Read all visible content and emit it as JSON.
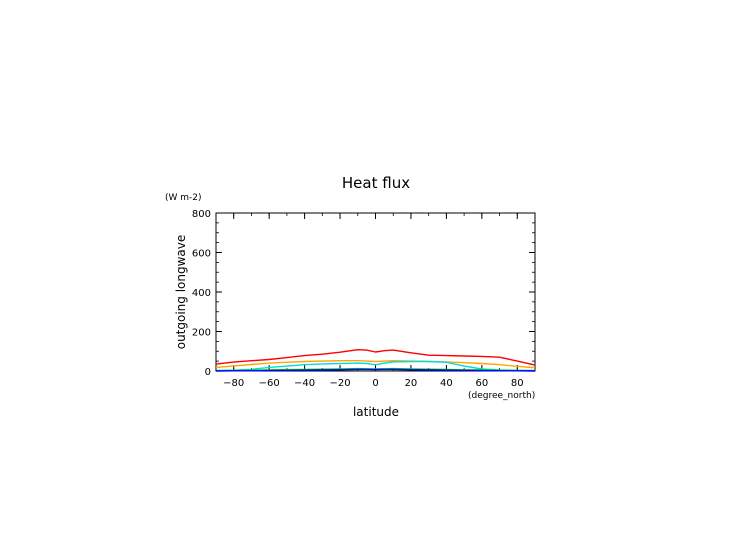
{
  "chart_data": {
    "type": "line",
    "title": "Heat flux",
    "xlabel": "latitude",
    "ylabel": "outgoing longwave",
    "xunits": "(degree_north)",
    "yunits": "(W m-2)",
    "xlim": [
      -90,
      90
    ],
    "ylim": [
      0,
      800
    ],
    "xticks": [
      -80,
      -60,
      -40,
      -20,
      0,
      20,
      40,
      60,
      80
    ],
    "xtick_labels": [
      "−80",
      "−60",
      "−40",
      "−20",
      "0",
      "20",
      "40",
      "60",
      "80"
    ],
    "yticks": [
      0,
      200,
      400,
      600,
      800
    ],
    "ytick_labels": [
      "0",
      "200",
      "400",
      "600",
      "800"
    ],
    "grid": false,
    "x": [
      -90,
      -80,
      -70,
      -60,
      -50,
      -40,
      -30,
      -20,
      -10,
      -5,
      0,
      5,
      10,
      20,
      30,
      40,
      50,
      60,
      70,
      80,
      90
    ],
    "series": [
      {
        "color": "#ff0000",
        "values": [
          35,
          45,
          52,
          58,
          68,
          78,
          85,
          95,
          108,
          106,
          96,
          103,
          106,
          92,
          80,
          78,
          76,
          74,
          70,
          50,
          30
        ]
      },
      {
        "color": "#ffa500",
        "values": [
          18,
          26,
          33,
          40,
          44,
          48,
          50,
          52,
          52,
          50,
          48,
          50,
          52,
          50,
          48,
          46,
          42,
          38,
          32,
          24,
          16
        ]
      },
      {
        "color": "#00dddd",
        "values": [
          2,
          4,
          8,
          18,
          25,
          32,
          36,
          38,
          40,
          38,
          32,
          40,
          46,
          48,
          48,
          44,
          25,
          10,
          5,
          3,
          2
        ]
      },
      {
        "color": "#00cc00",
        "values": [
          2,
          3,
          4,
          5,
          7,
          8,
          9,
          10,
          12,
          11,
          10,
          11,
          12,
          10,
          9,
          8,
          6,
          5,
          4,
          3,
          2
        ]
      },
      {
        "color": "#0000ff",
        "values": [
          0,
          1,
          1,
          2,
          3,
          4,
          5,
          6,
          8,
          8,
          7,
          8,
          8,
          6,
          5,
          4,
          3,
          2,
          1,
          1,
          0
        ]
      }
    ]
  }
}
